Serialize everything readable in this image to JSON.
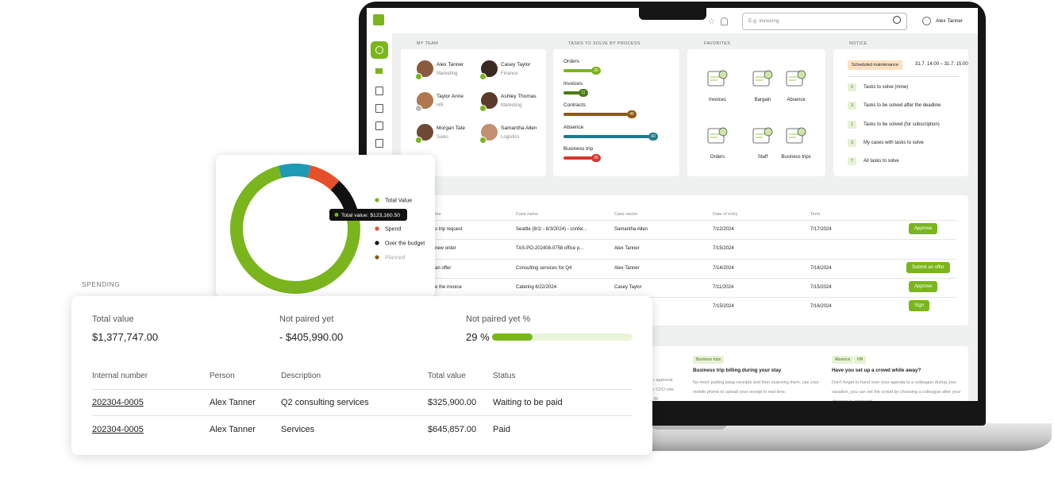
{
  "header": {
    "search_placeholder": "E.g. invoicing",
    "user": "Alex Tanner"
  },
  "my_team": {
    "title": "MY TEAM",
    "members": [
      {
        "name": "Alex Tanner",
        "role": "Marketing"
      },
      {
        "name": "Casey Taylor",
        "role": "Finance"
      },
      {
        "name": "Taylor Anne",
        "role": "HR"
      },
      {
        "name": "Ashley Thomas",
        "role": "Marketing"
      },
      {
        "name": "Morgan Tate",
        "role": "Sales"
      },
      {
        "name": "Samantha Allen",
        "role": "Logistics"
      }
    ]
  },
  "tasks": {
    "title": "TASKS TO SOLVE BY PROCESS",
    "items": [
      {
        "label": "Orders",
        "value": 20,
        "color": "#7ab51d"
      },
      {
        "label": "Invoices",
        "value": 11,
        "color": "#4a7a12"
      },
      {
        "label": "Contracts",
        "value": 45,
        "color": "#8c5a10"
      },
      {
        "label": "Absence",
        "value": 60,
        "color": "#1d7a8c"
      },
      {
        "label": "Business trip",
        "value": 20,
        "color": "#d8362a"
      }
    ]
  },
  "favorites": {
    "title": "FAVORITES",
    "items": [
      "Invoices",
      "Bargain",
      "Absence",
      "Orders",
      "Staff",
      "Business trips"
    ]
  },
  "notice": {
    "title": "NOTICE",
    "badge": "Scheduled maintenance",
    "period": "31.7. 14:00 – 31.7. 15:00",
    "items": [
      {
        "count": 6,
        "label": "Tasks to solve (mine)"
      },
      {
        "count": 3,
        "label": "Tasks to be solved after the deadline"
      },
      {
        "count": 1,
        "label": "Tasks to be solved (for subscription)"
      },
      {
        "count": 3,
        "label": "My cases with tasks to solve"
      },
      {
        "count": 7,
        "label": "All tasks to solve"
      }
    ]
  },
  "cases": {
    "columns": [
      "me",
      "Case name",
      "Case owner",
      "Date of entry",
      "Term"
    ],
    "rows": [
      {
        "type": "s trip request",
        "case": "Seattle (8/1/ - 8/3/2024) - confer...",
        "owner": "Samantha Allen",
        "entry": "7/12/2024",
        "term": "7/17/2024",
        "action": "Approve"
      },
      {
        "type": "new order",
        "case": "TAS-PO-202408-0758 office p...",
        "owner": "Alex Tanner",
        "entry": "7/15/2024"
      },
      {
        "type": "an offer",
        "case": "Consulting services for Q4",
        "owner": "Alex Tanner",
        "entry": "7/14/2024",
        "term": "7/16/2024",
        "action": "Submit an offer"
      },
      {
        "type": "e the invoice",
        "case": "Catering 6/22/2024",
        "owner": "Casey Taylor",
        "entry": "7/11/2024",
        "term": "7/15/2024",
        "action": "Approve"
      },
      {
        "entry": "7/15/2024",
        "term": "7/16/2024",
        "action": "Sign"
      }
    ]
  },
  "articles": {
    "partial_lines": [
      "r approval",
      "r CFO role",
      "2K"
    ],
    "items": [
      {
        "tags": [
          "Business trips"
        ],
        "title": "Business trip billing during your stay",
        "text": "No more putting away receipts and then scanning them, use your mobile phone to upload your receipt in real time."
      },
      {
        "tags": [
          "Absence",
          "HR"
        ],
        "title": "Have you set up a crowd while away?",
        "text": "Don't forget to hand over your agenda to a colleague during your vacation, you can set the crowd by choosing a colleague after your absence is approved."
      }
    ]
  },
  "chart_data": {
    "type": "donut",
    "categories": [
      "Total Value",
      null,
      "Spend",
      "Over the budget",
      "Planned"
    ],
    "values": [
      75,
      8,
      8,
      9,
      0
    ],
    "colors": [
      "#7ab51d",
      "#1e9ab5",
      "#e4502a",
      "#111111",
      "#8c5a10"
    ],
    "tooltip": "Total value: $123,160.50"
  },
  "spending": {
    "title": "SPENDING",
    "summary": [
      {
        "label": "Total value",
        "value": "$1,377,747.00"
      },
      {
        "label": "Not paired yet",
        "value": "- $405,990.00"
      }
    ],
    "percent": {
      "label": "Not paired yet %",
      "value": 29,
      "value_label": "29 %"
    },
    "columns": [
      "Internal number",
      "Person",
      "Description",
      "Total value",
      "Status"
    ],
    "rows": [
      [
        "202304-0005",
        "Alex Tanner",
        "Q2 consulting services",
        "$325,900.00",
        "Waiting to be paid"
      ],
      [
        "202304-0005",
        "Alex Tanner",
        "Services",
        "$645,857.00",
        "Paid"
      ]
    ]
  }
}
